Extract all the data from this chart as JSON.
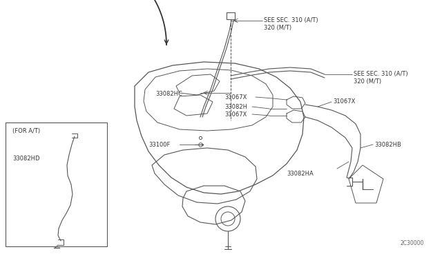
{
  "bg_color": "#ffffff",
  "lc": "#555555",
  "lc_dark": "#333333",
  "tc": "#333333",
  "diagram_code": "2C30000",
  "font_size": 6.5,
  "labels": {
    "see_sec1": "SEE SEC. 310 (A/T)\n320 (M/T)",
    "see_sec2": "SEE SEC. 310 (A/T)\n320 (M/T)",
    "33082HC": "33082HC",
    "31067X_a": "31067X",
    "33082H": "33082H",
    "31067X_b": "31067X",
    "31067X_c": "31067X",
    "33100F": "33100F",
    "33082HB": "33082HB",
    "33082HA": "33082HA",
    "for_at": "(FOR A/T)",
    "33082HD": "33082HD"
  }
}
